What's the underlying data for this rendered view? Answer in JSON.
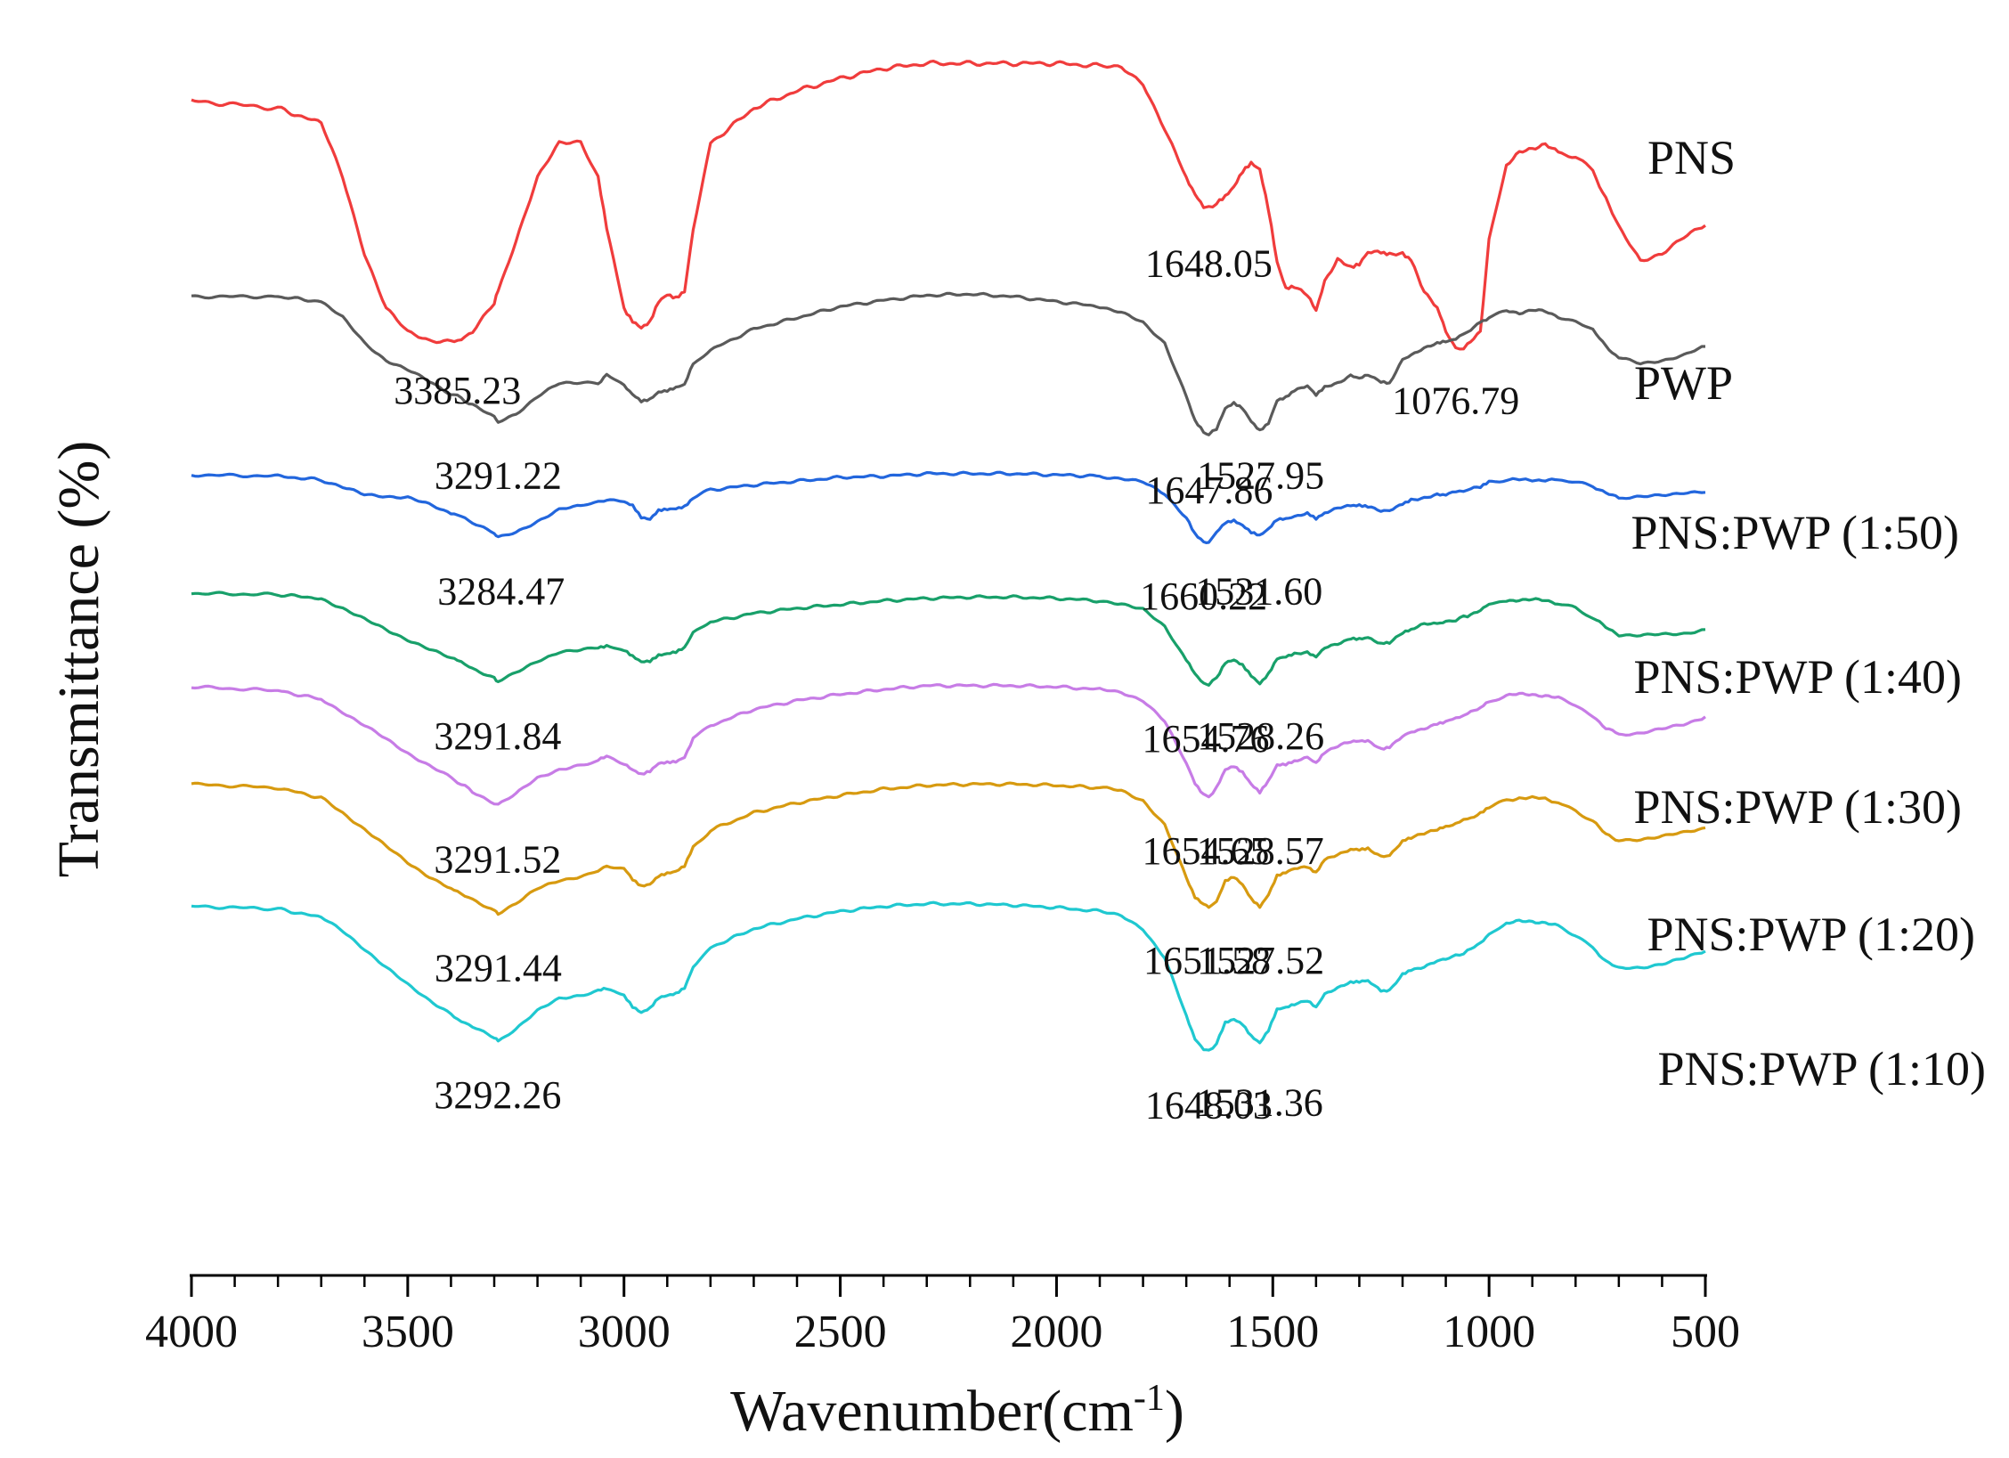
{
  "chart_data": {
    "type": "line",
    "title": "",
    "xlabel": "Wavenumber(cm",
    "xlabel_sup": "-1",
    "xlabel_close": ")",
    "ylabel": "Transmittance (%)",
    "xlim": [
      4000,
      500
    ],
    "x_ticks": [
      4000,
      3500,
      3000,
      2500,
      2000,
      1500,
      1000,
      500
    ],
    "tick_labels": [
      "4000",
      "3500",
      "3000",
      "2500",
      "2000",
      "1500",
      "1000",
      "500"
    ],
    "x": [
      4000,
      3800,
      3700,
      3650,
      3600,
      3550,
      3500,
      3450,
      3400,
      3385,
      3350,
      3300,
      3291,
      3250,
      3200,
      3150,
      3100,
      3060,
      3040,
      3000,
      2980,
      2960,
      2940,
      2920,
      2900,
      2880,
      2860,
      2840,
      2800,
      2700,
      2600,
      2500,
      2400,
      2300,
      2200,
      2100,
      2000,
      1900,
      1850,
      1800,
      1750,
      1700,
      1680,
      1660,
      1648,
      1630,
      1610,
      1590,
      1570,
      1550,
      1530,
      1510,
      1490,
      1470,
      1450,
      1420,
      1400,
      1380,
      1350,
      1320,
      1300,
      1280,
      1250,
      1230,
      1200,
      1180,
      1150,
      1120,
      1100,
      1077,
      1050,
      1020,
      1000,
      960,
      930,
      900,
      870,
      840,
      800,
      760,
      730,
      700,
      650,
      600,
      550,
      500
    ],
    "series": [
      {
        "name": "PNS",
        "color": "#f03c3c",
        "label": "PNS",
        "values": [
          96.2,
          95.6,
          94.4,
          90,
          84,
          79.6,
          77.6,
          77,
          77,
          77,
          77.6,
          80,
          81,
          85,
          90,
          92.8,
          93,
          90,
          86,
          79.6,
          78.6,
          78,
          78.4,
          80,
          80.6,
          80.4,
          81,
          86,
          92.8,
          95.6,
          97,
          98,
          98.8,
          99.2,
          99.2,
          99.2,
          99.2,
          99,
          98.8,
          97.6,
          94,
          90,
          88.8,
          87.8,
          87.6,
          88,
          88.6,
          89.4,
          90.6,
          91.2,
          90.6,
          87.4,
          83.2,
          81.2,
          81.4,
          80.6,
          79.4,
          81.8,
          83.4,
          82.8,
          83,
          84,
          84,
          83.8,
          84,
          83.4,
          81,
          79.6,
          77.8,
          76.2,
          76.6,
          77.6,
          85,
          91,
          92,
          92.4,
          92.8,
          92,
          91.8,
          90.6,
          88.4,
          86,
          83.4,
          84,
          85.2,
          86.2
        ]
      },
      {
        "name": "PWP",
        "color": "#5a5a5a",
        "label": "PWP",
        "values": [
          80.5,
          80.5,
          80.1,
          78.8,
          76.8,
          75.4,
          74.6,
          73.7,
          72.7,
          72.5,
          71.8,
          70.8,
          70.5,
          71.1,
          72.5,
          73.5,
          73.6,
          73.5,
          74.3,
          73.3,
          72.6,
          72.1,
          72.3,
          72.9,
          73,
          73.2,
          73.4,
          75.1,
          76.2,
          77.9,
          78.8,
          79.7,
          80.2,
          80.6,
          80.7,
          80.5,
          80.1,
          79.7,
          79.2,
          78.4,
          76.8,
          72.5,
          70.5,
          69.6,
          69.4,
          69.9,
          71.5,
          71.9,
          71.5,
          70.5,
          69.8,
          70.4,
          72.2,
          72.4,
          72.9,
          73.4,
          72.6,
          73.2,
          73.6,
          74.2,
          74,
          74.3,
          73.7,
          73.6,
          75.4,
          75.8,
          76.3,
          76.8,
          76.9,
          77.1,
          77.7,
          78.5,
          78.8,
          79.4,
          79.2,
          79.4,
          79.3,
          78.9,
          78.5,
          77.8,
          76.5,
          75.6,
          75.1,
          75.4,
          75.8,
          76.5
        ]
      },
      {
        "name": "PNS:PWP (1:50)",
        "color": "#2266dd",
        "label": "PNS:PWP (1:50)",
        "values": [
          66.2,
          66.1,
          65.8,
          65.2,
          64.6,
          64.5,
          64.4,
          63.8,
          63.1,
          63,
          62.4,
          61.5,
          61.2,
          61.6,
          62.5,
          63.4,
          63.7,
          64,
          64.1,
          64.1,
          63.8,
          62.8,
          62.6,
          63.3,
          63.4,
          63.5,
          63.7,
          64.4,
          65,
          65.4,
          65.7,
          66,
          66.1,
          66.3,
          66.3,
          66.3,
          66.2,
          66.1,
          65.9,
          65.6,
          64.7,
          62.8,
          61.5,
          60.9,
          60.8,
          61.6,
          62.4,
          62.6,
          62.2,
          61.6,
          61.3,
          61.8,
          62.6,
          62.7,
          62.9,
          63.1,
          62.7,
          63.2,
          63.5,
          63.7,
          63.7,
          63.6,
          63.3,
          63.3,
          63.9,
          64.2,
          64.4,
          64.6,
          64.6,
          64.8,
          65,
          65.2,
          65.6,
          65.8,
          65.8,
          65.8,
          65.8,
          65.8,
          65.6,
          65.3,
          64.8,
          64.3,
          64.4,
          64.6,
          64.8,
          64.8
        ]
      },
      {
        "name": "PNS:PWP (1:40)",
        "color": "#18a06a",
        "label": "PNS:PWP (1:40)",
        "values": [
          56.7,
          56.6,
          56.3,
          55.5,
          54.6,
          53.8,
          53,
          52.2,
          51.5,
          51.3,
          50.7,
          49.9,
          49.6,
          50.3,
          51.3,
          52,
          52.1,
          52.4,
          52.5,
          52.1,
          51.6,
          51.2,
          51.3,
          51.8,
          51.9,
          52,
          52.3,
          53.5,
          54.4,
          55.1,
          55.5,
          55.8,
          56.1,
          56.3,
          56.4,
          56.4,
          56.3,
          56.1,
          55.9,
          55.4,
          54,
          51.4,
          50.2,
          49.4,
          49.4,
          49.9,
          51.1,
          51.3,
          50.9,
          50.1,
          49.5,
          50.3,
          51.5,
          51.6,
          51.8,
          52,
          51.6,
          52.3,
          52.7,
          53.1,
          53.1,
          53.2,
          52.7,
          52.8,
          53.5,
          53.8,
          54.2,
          54.3,
          54.4,
          54.6,
          54.9,
          55.4,
          55.9,
          56.1,
          56.2,
          56.2,
          56.1,
          55.9,
          55.5,
          54.7,
          54,
          53.4,
          53.3,
          53.4,
          53.5,
          53.8
        ]
      },
      {
        "name": "PNS:PWP (1:30)",
        "color": "#c77ce6",
        "label": "PNS:PWP (1:30)",
        "values": [
          49.2,
          48.9,
          48.2,
          47.2,
          46.1,
          45,
          43.9,
          42.9,
          41.9,
          41.6,
          40.8,
          39.9,
          39.7,
          40.6,
          41.9,
          42.6,
          42.9,
          43.3,
          43.6,
          43.1,
          42.6,
          42.2,
          42.4,
          43,
          43.1,
          43.2,
          43.6,
          45.1,
          46.1,
          47.4,
          48.1,
          48.6,
          49,
          49.3,
          49.3,
          49.3,
          49.2,
          49,
          48.8,
          48.1,
          46.4,
          43.1,
          41.5,
          40.6,
          40.4,
          41.1,
          42.6,
          42.9,
          42.4,
          41.4,
          40.7,
          41.6,
          42.9,
          43,
          43.3,
          43.5,
          43.1,
          44,
          44.4,
          44.8,
          44.8,
          44.8,
          44.2,
          44.3,
          45.3,
          45.6,
          45.9,
          46.2,
          46.4,
          46.7,
          47,
          47.5,
          48,
          48.5,
          48.6,
          48.6,
          48.5,
          48.3,
          47.7,
          46.9,
          45.9,
          45.4,
          45.5,
          45.8,
          46.2,
          46.8
        ]
      },
      {
        "name": "PNS:PWP (1:20)",
        "color": "#d79a10",
        "label": "PNS:PWP (1:20)",
        "values": [
          41.4,
          41.1,
          40.3,
          39.1,
          37.8,
          36.4,
          35.1,
          34,
          33,
          32.8,
          32.1,
          31.3,
          31,
          31.8,
          33,
          33.7,
          34,
          34.5,
          34.9,
          34.6,
          33.7,
          33.2,
          33.4,
          34.1,
          34.3,
          34.4,
          34.8,
          36.3,
          37.7,
          39.1,
          39.9,
          40.5,
          41,
          41.3,
          41.4,
          41.4,
          41.3,
          41.1,
          40.9,
          40.1,
          38.1,
          33.9,
          32.3,
          31.7,
          31.5,
          32,
          33.6,
          33.9,
          33.3,
          32.2,
          31.6,
          32.6,
          34.1,
          34.3,
          34.6,
          34.8,
          34.3,
          35.3,
          35.8,
          36.2,
          36.2,
          36.3,
          35.6,
          35.7,
          36.8,
          37.1,
          37.4,
          37.8,
          38,
          38.3,
          38.6,
          39.1,
          39.6,
          40.1,
          40.3,
          40.3,
          40.2,
          39.9,
          39.3,
          38.4,
          37.4,
          36.9,
          37,
          37.2,
          37.5,
          37.9
        ]
      },
      {
        "name": "PNS:PWP (1:10)",
        "color": "#1fc8d0",
        "label": "PNS:PWP (1:10)",
        "values": [
          31.6,
          31.4,
          30.7,
          29.6,
          28.2,
          26.7,
          25.3,
          24.1,
          23,
          22.6,
          21.9,
          21.1,
          20.8,
          21.8,
          23.2,
          24.2,
          24.5,
          24.8,
          25,
          24.5,
          23.6,
          23.1,
          23.4,
          24.2,
          24.4,
          24.6,
          25.1,
          26.8,
          28.3,
          29.8,
          30.6,
          31.2,
          31.6,
          31.8,
          31.8,
          31.7,
          31.5,
          31.2,
          30.8,
          29.8,
          27.5,
          22.8,
          21,
          20.2,
          20,
          20.6,
          22.3,
          22.6,
          22.2,
          21.2,
          20.6,
          21.6,
          23.3,
          23.5,
          23.8,
          24,
          23.5,
          24.6,
          25,
          25.5,
          25.5,
          25.6,
          24.8,
          24.8,
          26.2,
          26.5,
          26.8,
          27.2,
          27.4,
          27.6,
          28,
          28.6,
          29.3,
          30.2,
          30.4,
          30.4,
          30.3,
          30,
          29.3,
          28.3,
          27.2,
          26.6,
          26.7,
          27,
          27.4,
          28
        ]
      }
    ],
    "annotations": [
      {
        "series": "PNS",
        "text": "3385.23",
        "x": 3385,
        "y": 73.2
      },
      {
        "series": "PNS",
        "text": "1648.05",
        "x": 1648,
        "y": 83.4
      },
      {
        "series": "PNS",
        "text": "1076.79",
        "x": 1077,
        "y": 72.4
      },
      {
        "series": "PWP",
        "text": "3291.22",
        "x": 3291,
        "y": 66.4
      },
      {
        "series": "PWP",
        "text": "1647.86",
        "x": 1647,
        "y": 65.2
      },
      {
        "series": "PWP",
        "text": "1527.95",
        "x": 1528,
        "y": 66.4
      },
      {
        "series": "PNS:PWP (1:50)",
        "text": "3284.47",
        "x": 3284,
        "y": 57.1
      },
      {
        "series": "PNS:PWP (1:50)",
        "text": "1660.22",
        "x": 1660,
        "y": 56.7
      },
      {
        "series": "PNS:PWP (1:50)",
        "text": "1531.60",
        "x": 1532,
        "y": 57.1
      },
      {
        "series": "PNS:PWP (1:40)",
        "text": "3291.84",
        "x": 3292,
        "y": 45.5
      },
      {
        "series": "PNS:PWP (1:40)",
        "text": "1654.76",
        "x": 1655,
        "y": 45.3
      },
      {
        "series": "PNS:PWP (1:40)",
        "text": "1528.26",
        "x": 1528,
        "y": 45.5
      },
      {
        "series": "PNS:PWP (1:30)",
        "text": "3291.52",
        "x": 3292,
        "y": 35.6
      },
      {
        "series": "PNS:PWP (1:30)",
        "text": "1654.65",
        "x": 1655,
        "y": 36.3
      },
      {
        "series": "PNS:PWP (1:30)",
        "text": "1528.57",
        "x": 1529,
        "y": 36.3
      },
      {
        "series": "PNS:PWP (1:20)",
        "text": "3291.44",
        "x": 3291,
        "y": 26.9
      },
      {
        "series": "PNS:PWP (1:20)",
        "text": "1651.58",
        "x": 1652,
        "y": 27.5
      },
      {
        "series": "PNS:PWP (1:20)",
        "text": "1527.52",
        "x": 1528,
        "y": 27.5
      },
      {
        "series": "PNS:PWP (1:10)",
        "text": "3292.26",
        "x": 3292,
        "y": 16.7
      },
      {
        "series": "PNS:PWP (1:10)",
        "text": "1648.03",
        "x": 1648,
        "y": 15.9
      },
      {
        "series": "PNS:PWP (1:10)",
        "text": "1531.36",
        "x": 1531,
        "y": 16.1
      }
    ],
    "legend": "curve labels at right end of each trace",
    "grid": false
  }
}
